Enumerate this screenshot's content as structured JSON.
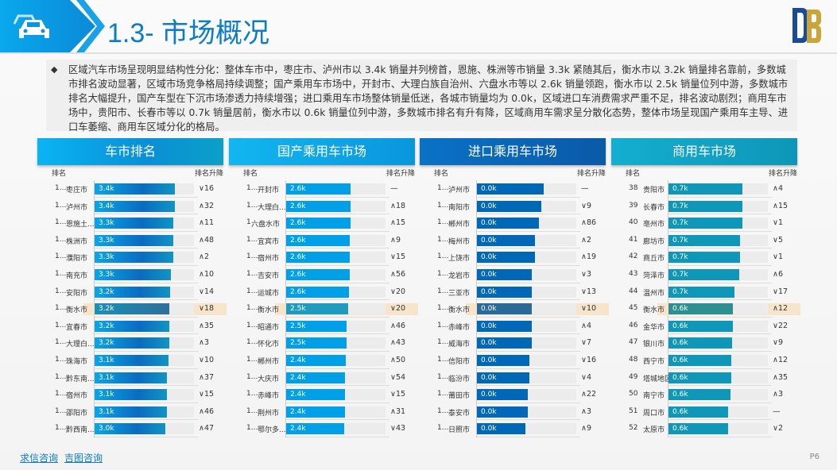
{
  "header": {
    "title": "1.3- 市场概况",
    "icon": "car-icon",
    "logo": "DB"
  },
  "summary": "区域汽车市场呈现明显结构性分化：整体车市中，枣庄市、泸州市以 3.4k 销量并列榜首，恩施、株洲等市销量 3.3k 紧随其后，衡水市以 3.2k 销量排名靠前，多数城市排名波动显著，区域市场竞争格局持续调整；国产乘用车市场中，开封市、大理白族自治州、六盘水市等以 2.6k 销量领跑，衡水市以 2.5k 销量位列中游，多数城市排名大幅提升，国产车型在下沉市场渗透力持续增强；进口乘用车市场整体销量低迷，各城市销量均为 0.0k，区域进口车消费需求严重不足，排名波动剧烈；商用车市场中，贵阳市、长春市等以 0.7k 销量居前，衡水市以 0.6k 销量位列中游，多数城市排名有升有降，区域商用车需求呈分散化态势，整体市场呈现国产乘用车主导、进口车萎缩、商用车区域分化的格局。",
  "colors": {
    "highlight": "#f7e5cb",
    "accent": "#0a7cc9"
  },
  "panels": [
    {
      "title": "车市排名",
      "col_rank": "排名",
      "col_change": "排名升降",
      "header_bg": "linear-gradient(90deg,#0ab4f2,#0a8fd6 60%,#0ba0c8)",
      "bar": "linear-gradient(90deg,#0aa5e6,#0a6cc0 60%,#1194c4)",
      "bar_hl": "linear-gradient(90deg,#1b8fb8,#2e6f9a)",
      "rows": [
        {
          "rank": "1...",
          "city": "枣庄市",
          "value": "3.4k",
          "change": "∨16",
          "fill": 0.81
        },
        {
          "rank": "1...",
          "city": "泸州市",
          "value": "3.4k",
          "change": "∧32",
          "fill": 0.81
        },
        {
          "rank": "1...",
          "city": "恩施土...",
          "value": "3.3k",
          "change": "∧11",
          "fill": 0.79
        },
        {
          "rank": "1...",
          "city": "株洲市",
          "value": "3.3k",
          "change": "∧48",
          "fill": 0.79
        },
        {
          "rank": "1...",
          "city": "濮阳市",
          "value": "3.3k",
          "change": "∧2",
          "fill": 0.79
        },
        {
          "rank": "1...",
          "city": "南充市",
          "value": "3.3k",
          "change": "∧10",
          "fill": 0.77
        },
        {
          "rank": "1...",
          "city": "安阳市",
          "value": "3.2k",
          "change": "∨14",
          "fill": 0.76
        },
        {
          "rank": "1...",
          "city": "衡水市",
          "value": "3.2k",
          "change": "∨18",
          "fill": 0.75,
          "highlight": true
        },
        {
          "rank": "1...",
          "city": "宜春市",
          "value": "3.2k",
          "change": "∧35",
          "fill": 0.75
        },
        {
          "rank": "1...",
          "city": "大理白...",
          "value": "3.2k",
          "change": "∧3",
          "fill": 0.75
        },
        {
          "rank": "1...",
          "city": "珠海市",
          "value": "3.1k",
          "change": "∨10",
          "fill": 0.74
        },
        {
          "rank": "1...",
          "city": "黔东南...",
          "value": "3.1k",
          "change": "∧37",
          "fill": 0.73
        },
        {
          "rank": "1...",
          "city": "宿州市",
          "value": "3.1k",
          "change": "∨15",
          "fill": 0.73
        },
        {
          "rank": "1...",
          "city": "邵阳市",
          "value": "3.1k",
          "change": "∧46",
          "fill": 0.73
        },
        {
          "rank": "1...",
          "city": "黔西南...",
          "value": "3.0k",
          "change": "∧47",
          "fill": 0.71
        }
      ]
    },
    {
      "title": "国产乘用车市场",
      "col_rank": "排名",
      "col_change": "排名升降",
      "header_bg": "linear-gradient(90deg,#12b6f0,#0a96dc)",
      "bar": "#00a0e9",
      "bar_hl": "#1e9bbf",
      "rows": [
        {
          "rank": "1...",
          "city": "开封市",
          "value": "2.6k",
          "change": "—",
          "fill": 0.65
        },
        {
          "rank": "1...",
          "city": "大理白...",
          "value": "2.6k",
          "change": "∧18",
          "fill": 0.65
        },
        {
          "rank": "1",
          "city": "六盘水市",
          "value": "2.6k",
          "change": "∧15",
          "fill": 0.65
        },
        {
          "rank": "1...",
          "city": "宜宾市",
          "value": "2.6k",
          "change": "∧9",
          "fill": 0.64
        },
        {
          "rank": "1...",
          "city": "宿州市",
          "value": "2.6k",
          "change": "∨15",
          "fill": 0.64
        },
        {
          "rank": "1...",
          "city": "吉安市",
          "value": "2.6k",
          "change": "∧56",
          "fill": 0.64
        },
        {
          "rank": "1...",
          "city": "运城市",
          "value": "2.6k",
          "change": "∨20",
          "fill": 0.63
        },
        {
          "rank": "1...",
          "city": "衡水市",
          "value": "2.5k",
          "change": "∨20",
          "fill": 0.62,
          "highlight": true
        },
        {
          "rank": "1...",
          "city": "昭通市",
          "value": "2.5k",
          "change": "∧46",
          "fill": 0.61
        },
        {
          "rank": "1...",
          "city": "怀化市",
          "value": "2.5k",
          "change": "∧43",
          "fill": 0.61
        },
        {
          "rank": "1...",
          "city": "郴州市",
          "value": "2.4k",
          "change": "∧50",
          "fill": 0.6
        },
        {
          "rank": "1...",
          "city": "大庆市",
          "value": "2.4k",
          "change": "∨54",
          "fill": 0.59
        },
        {
          "rank": "1...",
          "city": "赤峰市",
          "value": "2.4k",
          "change": "∨15",
          "fill": 0.59
        },
        {
          "rank": "1...",
          "city": "荆州市",
          "value": "2.4k",
          "change": "∧31",
          "fill": 0.59
        },
        {
          "rank": "1...",
          "city": "鄂尔多...",
          "value": "2.4k",
          "change": "∨43",
          "fill": 0.58
        }
      ]
    },
    {
      "title": "进口乘用车市场",
      "col_rank": "排名",
      "col_change": "排名升降",
      "header_bg": "linear-gradient(90deg,#0a72c6,#0a5aa8)",
      "bar": "#0068b7",
      "bar_hl": "#2a6a98",
      "rows": [
        {
          "rank": "1...",
          "city": "泸州市",
          "value": "0.0k",
          "change": "—",
          "fill": 0.67
        },
        {
          "rank": "1...",
          "city": "南阳市",
          "value": "0.0k",
          "change": "∨9",
          "fill": 0.65
        },
        {
          "rank": "1...",
          "city": "郴州市",
          "value": "0.0k",
          "change": "∧86",
          "fill": 0.62
        },
        {
          "rank": "1...",
          "city": "梅州市",
          "value": "0.0k",
          "change": "∧2",
          "fill": 0.58
        },
        {
          "rank": "1...",
          "city": "上饶市",
          "value": "0.0k",
          "change": "∧19",
          "fill": 0.58
        },
        {
          "rank": "1...",
          "city": "龙岩市",
          "value": "0.0k",
          "change": "∨3",
          "fill": 0.55
        },
        {
          "rank": "1...",
          "city": "三亚市",
          "value": "0.0k",
          "change": "∨13",
          "fill": 0.55
        },
        {
          "rank": "1...",
          "city": "衡水市",
          "value": "0.0k",
          "change": "∨10",
          "fill": 0.55,
          "highlight": true
        },
        {
          "rank": "1...",
          "city": "赤峰市",
          "value": "0.0k",
          "change": "∧4",
          "fill": 0.55
        },
        {
          "rank": "1...",
          "city": "威海市",
          "value": "0.0k",
          "change": "∨7",
          "fill": 0.55
        },
        {
          "rank": "1...",
          "city": "信阳市",
          "value": "0.0k",
          "change": "∨16",
          "fill": 0.53
        },
        {
          "rank": "1...",
          "city": "临汾市",
          "value": "0.0k",
          "change": "∨4",
          "fill": 0.53
        },
        {
          "rank": "1...",
          "city": "莆田市",
          "value": "0.0k",
          "change": "∧22",
          "fill": 0.51
        },
        {
          "rank": "1...",
          "city": "泰安市",
          "value": "0.0k",
          "change": "∧3",
          "fill": 0.51
        },
        {
          "rank": "1...",
          "city": "日照市",
          "value": "0.0k",
          "change": "∧9",
          "fill": 0.49
        }
      ]
    },
    {
      "title": "商用车市场",
      "col_rank": "排名",
      "col_change": "排名升降",
      "header_bg": "linear-gradient(90deg,#14aed0,#0e96b8)",
      "bar": "#0e97b8",
      "bar_hl": "#2d8f90",
      "rows": [
        {
          "rank": "38",
          "city": "贵阳市",
          "value": "0.7k",
          "change": "∧4",
          "fill": 0.74
        },
        {
          "rank": "39",
          "city": "长春市",
          "value": "0.7k",
          "change": "∧15",
          "fill": 0.74
        },
        {
          "rank": "40",
          "city": "亳州市",
          "value": "0.7k",
          "change": "∨1",
          "fill": 0.74
        },
        {
          "rank": "41",
          "city": "廊坊市",
          "value": "0.7k",
          "change": "∨5",
          "fill": 0.72
        },
        {
          "rank": "42",
          "city": "商丘市",
          "value": "0.7k",
          "change": "∨1",
          "fill": 0.72
        },
        {
          "rank": "43",
          "city": "菏泽市",
          "value": "0.7k",
          "change": "∧6",
          "fill": 0.71
        },
        {
          "rank": "44",
          "city": "温州市",
          "value": "0.7k",
          "change": "∨17",
          "fill": 0.66
        },
        {
          "rank": "45",
          "city": "衡水市",
          "value": "0.6k",
          "change": "∧12",
          "fill": 0.65,
          "highlight": true
        },
        {
          "rank": "46",
          "city": "金华市",
          "value": "0.6k",
          "change": "∨22",
          "fill": 0.65
        },
        {
          "rank": "47",
          "city": "银川市",
          "value": "0.6k",
          "change": "∨9",
          "fill": 0.64
        },
        {
          "rank": "48",
          "city": "西宁市",
          "value": "0.6k",
          "change": "∧12",
          "fill": 0.63
        },
        {
          "rank": "49",
          "city": "塔城地区",
          "value": "0.6k",
          "change": "∧35",
          "fill": 0.63
        },
        {
          "rank": "50",
          "city": "南宁市",
          "value": "0.6k",
          "change": "∧3",
          "fill": 0.62
        },
        {
          "rank": "51",
          "city": "周口市",
          "value": "0.6k",
          "change": "—",
          "fill": 0.6
        },
        {
          "rank": "52",
          "city": "太原市",
          "value": "0.6k",
          "change": "∨2",
          "fill": 0.6
        }
      ]
    }
  ],
  "footer": {
    "links": [
      "求信咨询",
      "吉图咨询"
    ],
    "page": "P6"
  }
}
